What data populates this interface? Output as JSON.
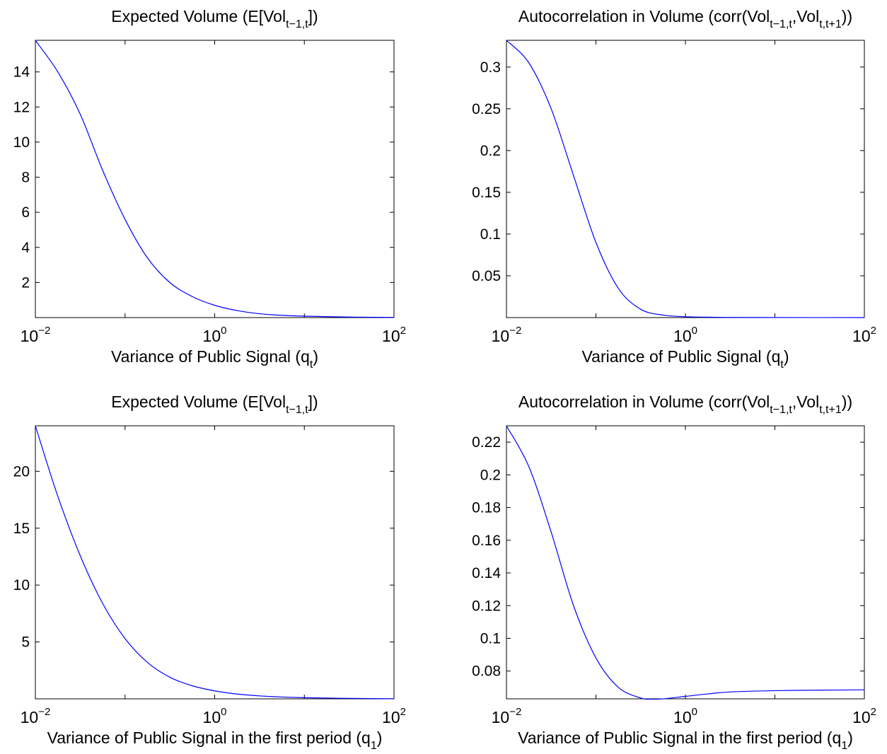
{
  "chart_data": [
    {
      "type": "line",
      "title": {
        "main": "Expected Volume (E[Vol",
        "sub": "t−1,t",
        "end": "])"
      },
      "xlabel": {
        "main": "Variance of Public Signal (q",
        "sub": "t",
        "end": ")"
      },
      "ylabel": "",
      "xscale": "log",
      "xlim": [
        0.01,
        100
      ],
      "ylim": [
        0,
        15.8
      ],
      "xticks": [
        {
          "base": "10",
          "exp": "−2",
          "value": 0.01
        },
        {
          "base": "10",
          "exp": "0",
          "value": 1
        },
        {
          "base": "10",
          "exp": "2",
          "value": 100
        }
      ],
      "yticks": [
        {
          "label": "2",
          "value": 2
        },
        {
          "label": "4",
          "value": 4
        },
        {
          "label": "6",
          "value": 6
        },
        {
          "label": "8",
          "value": 8
        },
        {
          "label": "10",
          "value": 10
        },
        {
          "label": "12",
          "value": 12
        },
        {
          "label": "14",
          "value": 14
        }
      ],
      "grid": false,
      "series": [
        {
          "color": "#0000ff",
          "x": [
            0.01,
            0.0178,
            0.0316,
            0.0562,
            0.1,
            0.178,
            0.316,
            0.562,
            1,
            1.78,
            3.16,
            5.62,
            10,
            31.6,
            100
          ],
          "y": [
            15.8,
            14.0,
            11.6,
            8.4,
            5.6,
            3.4,
            2.0,
            1.2,
            0.7,
            0.4,
            0.22,
            0.13,
            0.08,
            0.03,
            0.01
          ]
        }
      ]
    },
    {
      "type": "line",
      "title": {
        "main": "Autocorrelation in Volume (corr(Vol",
        "sub": "t−1,t",
        "mid": ",Vol",
        "sub2": "t,t+1",
        "end": "))"
      },
      "xlabel": {
        "main": "Variance of Public Signal (q",
        "sub": "t",
        "end": ")"
      },
      "ylabel": "",
      "xscale": "log",
      "xlim": [
        0.01,
        100
      ],
      "ylim": [
        0,
        0.332
      ],
      "xticks": [
        {
          "base": "10",
          "exp": "−2",
          "value": 0.01
        },
        {
          "base": "10",
          "exp": "0",
          "value": 1
        },
        {
          "base": "10",
          "exp": "2",
          "value": 100
        }
      ],
      "yticks": [
        {
          "label": "0.05",
          "value": 0.05
        },
        {
          "label": "0.1",
          "value": 0.1
        },
        {
          "label": "0.15",
          "value": 0.15
        },
        {
          "label": "0.2",
          "value": 0.2
        },
        {
          "label": "0.25",
          "value": 0.25
        },
        {
          "label": "0.3",
          "value": 0.3
        }
      ],
      "grid": false,
      "series": [
        {
          "color": "#0000ff",
          "x": [
            0.01,
            0.0178,
            0.0316,
            0.0562,
            0.1,
            0.178,
            0.316,
            0.562,
            1,
            1.78,
            3.16,
            10,
            100
          ],
          "y": [
            0.332,
            0.305,
            0.25,
            0.17,
            0.09,
            0.035,
            0.01,
            0.003,
            0.001,
            0.0005,
            0.0002,
            0.0001,
            0
          ]
        }
      ]
    },
    {
      "type": "line",
      "title": {
        "main": "Expected Volume (E[Vol",
        "sub": "t−1,t",
        "end": "])"
      },
      "xlabel": {
        "main": "Variance of Public Signal in the first period (q",
        "sub": "1",
        "end": ")"
      },
      "ylabel": "",
      "xscale": "log",
      "xlim": [
        0.01,
        100
      ],
      "ylim": [
        0,
        24
      ],
      "xticks": [
        {
          "base": "10",
          "exp": "−2",
          "value": 0.01
        },
        {
          "base": "10",
          "exp": "0",
          "value": 1
        },
        {
          "base": "10",
          "exp": "2",
          "value": 100
        }
      ],
      "yticks": [
        {
          "label": "5",
          "value": 5
        },
        {
          "label": "10",
          "value": 10
        },
        {
          "label": "15",
          "value": 15
        },
        {
          "label": "20",
          "value": 20
        }
      ],
      "grid": false,
      "series": [
        {
          "color": "#0000ff",
          "x": [
            0.01,
            0.0178,
            0.0316,
            0.0562,
            0.1,
            0.178,
            0.316,
            0.562,
            1,
            1.78,
            3.16,
            5.62,
            10,
            31.6,
            100
          ],
          "y": [
            24.0,
            17.8,
            12.6,
            8.4,
            5.3,
            3.2,
            1.9,
            1.15,
            0.7,
            0.42,
            0.26,
            0.16,
            0.1,
            0.04,
            0.01
          ]
        }
      ]
    },
    {
      "type": "line",
      "title": {
        "main": "Autocorrelation in Volume (corr(Vol",
        "sub": "t−1,t",
        "mid": ",Vol",
        "sub2": "t,t+1",
        "end": "))"
      },
      "xlabel": {
        "main": "Variance of Public Signal in the first period (q",
        "sub": "1",
        "end": ")"
      },
      "ylabel": "",
      "xscale": "log",
      "xlim": [
        0.01,
        100
      ],
      "ylim": [
        0.063,
        0.23
      ],
      "xticks": [
        {
          "base": "10",
          "exp": "−2",
          "value": 0.01
        },
        {
          "base": "10",
          "exp": "0",
          "value": 1
        },
        {
          "base": "10",
          "exp": "2",
          "value": 100
        }
      ],
      "yticks": [
        {
          "label": "0.08",
          "value": 0.08
        },
        {
          "label": "0.1",
          "value": 0.1
        },
        {
          "label": "0.12",
          "value": 0.12
        },
        {
          "label": "0.14",
          "value": 0.14
        },
        {
          "label": "0.16",
          "value": 0.16
        },
        {
          "label": "0.18",
          "value": 0.18
        },
        {
          "label": "0.2",
          "value": 0.2
        },
        {
          "label": "0.22",
          "value": 0.22
        }
      ],
      "grid": false,
      "series": [
        {
          "color": "#0000ff",
          "x": [
            0.01,
            0.0178,
            0.0316,
            0.0562,
            0.1,
            0.178,
            0.316,
            0.42,
            0.562,
            1,
            1.78,
            3.16,
            10,
            31.6,
            100
          ],
          "y": [
            0.23,
            0.205,
            0.165,
            0.12,
            0.088,
            0.07,
            0.0635,
            0.0628,
            0.063,
            0.0645,
            0.066,
            0.0672,
            0.068,
            0.0683,
            0.0685
          ]
        }
      ]
    }
  ]
}
